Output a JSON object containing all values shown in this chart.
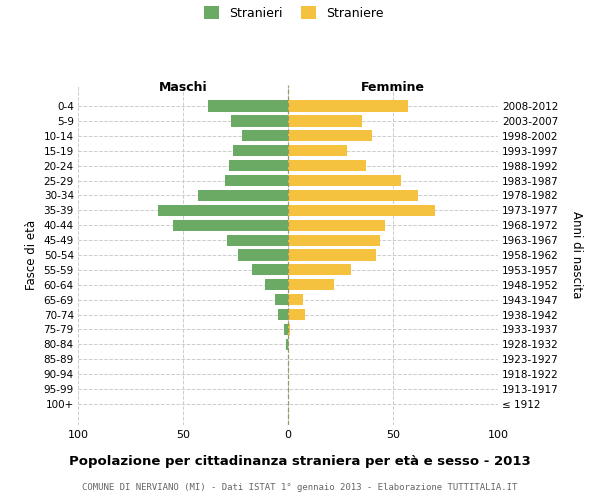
{
  "age_groups": [
    "100+",
    "95-99",
    "90-94",
    "85-89",
    "80-84",
    "75-79",
    "70-74",
    "65-69",
    "60-64",
    "55-59",
    "50-54",
    "45-49",
    "40-44",
    "35-39",
    "30-34",
    "25-29",
    "20-24",
    "15-19",
    "10-14",
    "5-9",
    "0-4"
  ],
  "birth_years": [
    "≤ 1912",
    "1913-1917",
    "1918-1922",
    "1923-1927",
    "1928-1932",
    "1933-1937",
    "1938-1942",
    "1943-1947",
    "1948-1952",
    "1953-1957",
    "1958-1962",
    "1963-1967",
    "1968-1972",
    "1973-1977",
    "1978-1982",
    "1983-1987",
    "1988-1992",
    "1993-1997",
    "1998-2002",
    "2003-2007",
    "2008-2012"
  ],
  "males": [
    0,
    0,
    0,
    0,
    1,
    2,
    5,
    6,
    11,
    17,
    24,
    29,
    55,
    62,
    43,
    30,
    28,
    26,
    22,
    27,
    38
  ],
  "females": [
    0,
    0,
    0,
    0,
    0,
    1,
    8,
    7,
    22,
    30,
    42,
    44,
    46,
    70,
    62,
    54,
    37,
    28,
    40,
    35,
    57
  ],
  "male_color": "#6aaa64",
  "female_color": "#f5c240",
  "background_color": "#ffffff",
  "grid_color": "#cccccc",
  "title": "Popolazione per cittadinanza straniera per età e sesso - 2013",
  "subtitle": "COMUNE DI NERVIANO (MI) - Dati ISTAT 1° gennaio 2013 - Elaborazione TUTTITALIA.IT",
  "xlabel_left": "Maschi",
  "xlabel_right": "Femmine",
  "ylabel_left": "Fasce di età",
  "ylabel_right": "Anni di nascita",
  "legend_male": "Stranieri",
  "legend_female": "Straniere",
  "xlim": 100
}
